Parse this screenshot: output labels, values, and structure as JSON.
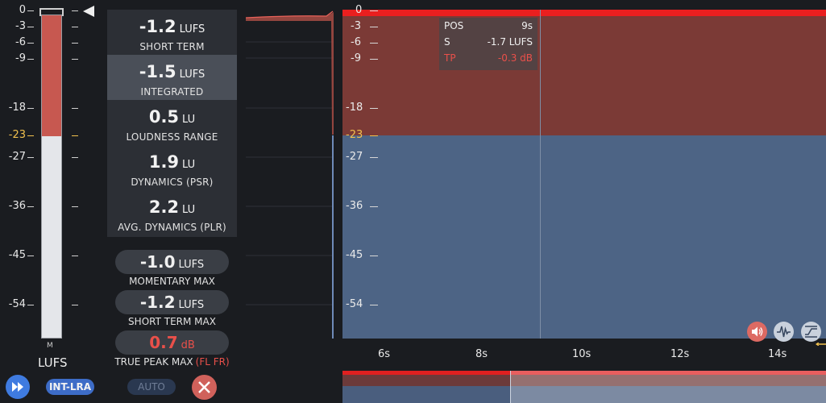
{
  "meter": {
    "unit_label": "LUFS",
    "channel_label": "M",
    "scale": [
      "0",
      "-3",
      "-6",
      "-9",
      "-18",
      "-23",
      "-27",
      "-36",
      "-45",
      "-54"
    ],
    "target_label": "-23",
    "level_fill_fraction": 0.37
  },
  "stats": {
    "short_term": {
      "value": "-1.2",
      "unit": "LUFS",
      "label": "SHORT TERM"
    },
    "integrated": {
      "value": "-1.5",
      "unit": "LUFS",
      "label": "INTEGRATED"
    },
    "loudness_range": {
      "value": "0.5",
      "unit": "LU",
      "label": "LOUDNESS RANGE"
    },
    "dynamics_psr": {
      "value": "1.9",
      "unit": "LU",
      "label": "DYNAMICS (PSR)"
    },
    "avg_dynamics_plr": {
      "value": "2.2",
      "unit": "LU",
      "label": "AVG. DYNAMICS (PLR)"
    }
  },
  "max": {
    "momentary": {
      "value": "-1.0",
      "unit": "LUFS",
      "label": "MOMENTARY MAX"
    },
    "short_term": {
      "value": "-1.2",
      "unit": "LUFS",
      "label": "SHORT TERM MAX"
    },
    "true_peak": {
      "value": "0.7",
      "unit": "dB",
      "label": "TRUE PEAK MAX",
      "channels": "(FL FR)"
    }
  },
  "controls": {
    "int_lra": "INT-LRA",
    "auto": "AUTO"
  },
  "graph": {
    "scale": [
      "0",
      "-3",
      "-6",
      "-9",
      "-18",
      "-23",
      "-27",
      "-36",
      "-45",
      "-54"
    ],
    "tooltip": {
      "pos_key": "POS",
      "pos_val": "9s",
      "s_key": "S",
      "s_val": "-1.7 LUFS",
      "tp_key": "TP",
      "tp_val": "-0.3 dB"
    },
    "time_labels": [
      "6s",
      "8s",
      "10s",
      "12s",
      "14s"
    ]
  },
  "colors": {
    "accent_blue": "#3f7be0",
    "warn_yellow": "#f2c14e",
    "peak_red": "#e9504a"
  },
  "icons": [
    "fast-forward-icon",
    "close-icon",
    "speaker-icon",
    "waveform-icon",
    "loudness-curve-icon"
  ]
}
